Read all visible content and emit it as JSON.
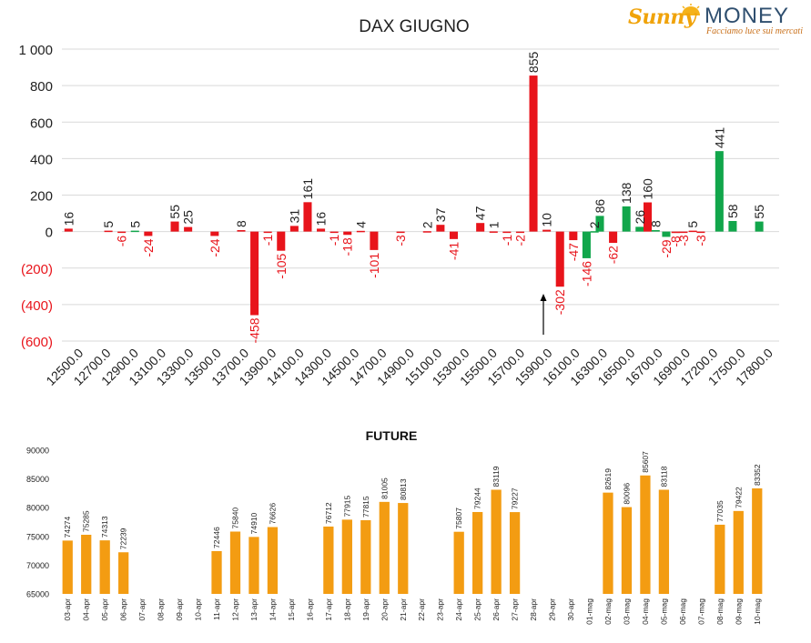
{
  "logo": {
    "brand_part1": "Sunny",
    "brand_part2": "MONEY",
    "tagline": "Facciamo luce sui mercati"
  },
  "colors": {
    "negative_bar": "#e8141b",
    "positive_bar": "#11a64b",
    "negative_label": "#e8141b",
    "future_bar": "#f39c12"
  },
  "chart_data": [
    {
      "type": "bar",
      "title": "DAX GIUGNO",
      "ylim": [
        -600,
        1000
      ],
      "yticks": [
        {
          "value": 1000,
          "label": "1 000"
        },
        {
          "value": 800,
          "label": "800"
        },
        {
          "value": 600,
          "label": "600"
        },
        {
          "value": 400,
          "label": "400"
        },
        {
          "value": 200,
          "label": "200"
        },
        {
          "value": 0,
          "label": "0"
        },
        {
          "value": -200,
          "label": "(200)"
        },
        {
          "value": -400,
          "label": "(400)"
        },
        {
          "value": -600,
          "label": "(600)"
        }
      ],
      "xtick_labels": [
        "12500.0",
        "12700.0",
        "12900.0",
        "13100.0",
        "13300.0",
        "13500.0",
        "13700.0",
        "13900.0",
        "14100.0",
        "14300.0",
        "14500.0",
        "14700.0",
        "14900.0",
        "15100.0",
        "15300.0",
        "15500.0",
        "15700.0",
        "15900.0",
        "16100.0",
        "16300.0",
        "16500.0",
        "16700.0",
        "16900.0",
        "17200.0",
        "17500.0",
        "17800.0"
      ],
      "grid": true,
      "annotation": "arrow pointing at 15900.0",
      "bars": [
        {
          "cat": 0,
          "value": 16,
          "color": "red",
          "label": "16"
        },
        {
          "cat": 3,
          "value": 5,
          "color": "red",
          "label": "5"
        },
        {
          "cat": 4,
          "value": -6,
          "color": "red",
          "label": "-6"
        },
        {
          "cat": 5,
          "value": 5,
          "color": "green",
          "label": "5"
        },
        {
          "cat": 6,
          "value": -24,
          "color": "red",
          "label": "-24"
        },
        {
          "cat": 8,
          "value": 55,
          "color": "red",
          "label": "55"
        },
        {
          "cat": 9,
          "value": 25,
          "color": "red",
          "label": "25"
        },
        {
          "cat": 11,
          "value": -24,
          "color": "red",
          "label": "-24"
        },
        {
          "cat": 13,
          "value": 8,
          "color": "red",
          "label": "8"
        },
        {
          "cat": 14,
          "value": -458,
          "color": "red",
          "label": "-458"
        },
        {
          "cat": 15,
          "value": -1,
          "color": "red",
          "label": "-1"
        },
        {
          "cat": 16,
          "value": -105,
          "color": "red",
          "label": "-105"
        },
        {
          "cat": 17,
          "value": 31,
          "color": "red",
          "label": "31"
        },
        {
          "cat": 18,
          "value": 161,
          "color": "red",
          "label": "161"
        },
        {
          "cat": 19,
          "value": 16,
          "color": "red",
          "label": "16"
        },
        {
          "cat": 20,
          "value": -1,
          "color": "red",
          "label": "-1"
        },
        {
          "cat": 21,
          "value": -18,
          "color": "red",
          "label": "-18"
        },
        {
          "cat": 22,
          "value": 4,
          "color": "red",
          "label": "4"
        },
        {
          "cat": 23,
          "value": -101,
          "color": "red",
          "label": "-101"
        },
        {
          "cat": 25,
          "value": -3,
          "color": "red",
          "label": "-3"
        },
        {
          "cat": 27,
          "value": 2,
          "color": "red",
          "label": "2"
        },
        {
          "cat": 28,
          "value": 37,
          "color": "red",
          "label": "37"
        },
        {
          "cat": 29,
          "value": -41,
          "color": "red",
          "label": "-41"
        },
        {
          "cat": 31,
          "value": 47,
          "color": "red",
          "label": "47"
        },
        {
          "cat": 32,
          "value": 1,
          "color": "red",
          "label": "1"
        },
        {
          "cat": 33,
          "value": -1,
          "color": "red",
          "label": "-1"
        },
        {
          "cat": 34,
          "value": -2,
          "color": "red",
          "label": "-2"
        },
        {
          "cat": 35,
          "value": 855,
          "color": "red",
          "label": "855"
        },
        {
          "cat": 36,
          "value": 10,
          "color": "red",
          "label": "10"
        },
        {
          "cat": 37,
          "value": -302,
          "color": "red",
          "label": "-302"
        },
        {
          "cat": 38,
          "value": -47,
          "color": "red",
          "label": "-47"
        },
        {
          "cat": 39,
          "value": -146,
          "color": "green",
          "label": "-146"
        },
        {
          "cat": 39.6,
          "value": 2,
          "color": "green",
          "label": "2"
        },
        {
          "cat": 40,
          "value": 86,
          "color": "green",
          "label": "86"
        },
        {
          "cat": 41,
          "value": -62,
          "color": "red",
          "label": "-62"
        },
        {
          "cat": 42,
          "value": 138,
          "color": "green",
          "label": "138"
        },
        {
          "cat": 43,
          "value": 26,
          "color": "green",
          "label": "26"
        },
        {
          "cat": 43.6,
          "value": 160,
          "color": "red",
          "label": "160"
        },
        {
          "cat": 44.2,
          "value": 8,
          "color": "green",
          "label": "8"
        },
        {
          "cat": 45,
          "value": -29,
          "color": "green",
          "label": "-29"
        },
        {
          "cat": 45.7,
          "value": -8,
          "color": "red",
          "label": "-8"
        },
        {
          "cat": 46.3,
          "value": -3,
          "color": "red",
          "label": "-3"
        },
        {
          "cat": 47,
          "value": 5,
          "color": "red",
          "label": "5"
        },
        {
          "cat": 47.6,
          "value": -3,
          "color": "red",
          "label": "-3"
        },
        {
          "cat": 49,
          "value": 441,
          "color": "green",
          "label": "441"
        },
        {
          "cat": 50,
          "value": 58,
          "color": "green",
          "label": "58"
        },
        {
          "cat": 52,
          "value": 55,
          "color": "green",
          "label": "55"
        }
      ]
    },
    {
      "type": "bar",
      "title": "FUTURE",
      "ylim": [
        65000,
        90000
      ],
      "yticks": [
        {
          "value": 90000,
          "label": "90000"
        },
        {
          "value": 85000,
          "label": "85000"
        },
        {
          "value": 80000,
          "label": "80000"
        },
        {
          "value": 75000,
          "label": "75000"
        },
        {
          "value": 70000,
          "label": "70000"
        },
        {
          "value": 65000,
          "label": "65000"
        }
      ],
      "categories": [
        "03-apr",
        "04-apr",
        "05-apr",
        "06-apr",
        "07-apr",
        "08-apr",
        "09-apr",
        "10-apr",
        "11-apr",
        "12-apr",
        "13-apr",
        "14-apr",
        "15-apr",
        "16-apr",
        "17-apr",
        "18-apr",
        "19-apr",
        "20-apr",
        "21-apr",
        "22-apr",
        "23-apr",
        "24-apr",
        "25-apr",
        "26-apr",
        "27-apr",
        "28-apr",
        "29-apr",
        "30-apr",
        "01-mag",
        "02-mag",
        "03-mag",
        "04-mag",
        "05-mag",
        "06-mag",
        "07-mag",
        "08-mag",
        "09-mag",
        "10-mag"
      ],
      "values": [
        74274,
        75285,
        74313,
        72239,
        null,
        null,
        null,
        null,
        72446,
        75840,
        74910,
        76626,
        null,
        null,
        76712,
        77915,
        77815,
        81005,
        80813,
        null,
        null,
        75807,
        79244,
        83119,
        79227,
        null,
        null,
        null,
        null,
        82619,
        80096,
        85607,
        83118,
        null,
        null,
        77035,
        79422,
        83352
      ],
      "grid": false
    }
  ]
}
